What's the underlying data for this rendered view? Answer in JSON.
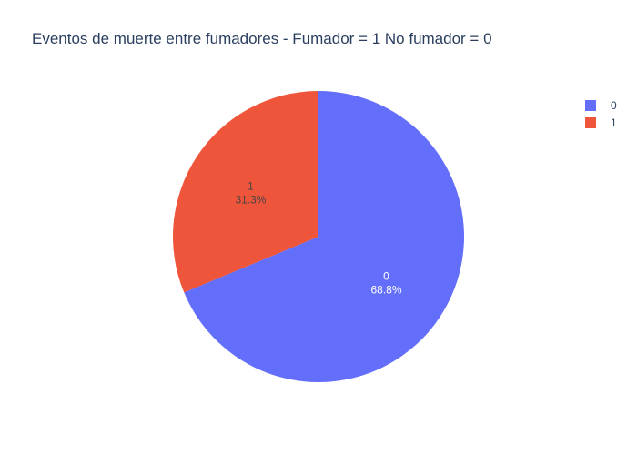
{
  "chart_data": {
    "type": "pie",
    "title": "Eventos de muerte entre fumadores - Fumador = 1 No fumador = 0",
    "categories": [
      "0",
      "1"
    ],
    "values": [
      68.8,
      31.3
    ],
    "percent_labels": [
      "68.8%",
      "31.3%"
    ],
    "colors": [
      "#636efa",
      "#ef553b"
    ],
    "label_colors": [
      "#ffffff",
      "#444444"
    ],
    "legend_position": "top-right",
    "direction": "clockwise",
    "start_angle": "top"
  },
  "legend": {
    "items": [
      {
        "label": "0",
        "color": "#636efa"
      },
      {
        "label": "1",
        "color": "#ef553b"
      }
    ]
  }
}
